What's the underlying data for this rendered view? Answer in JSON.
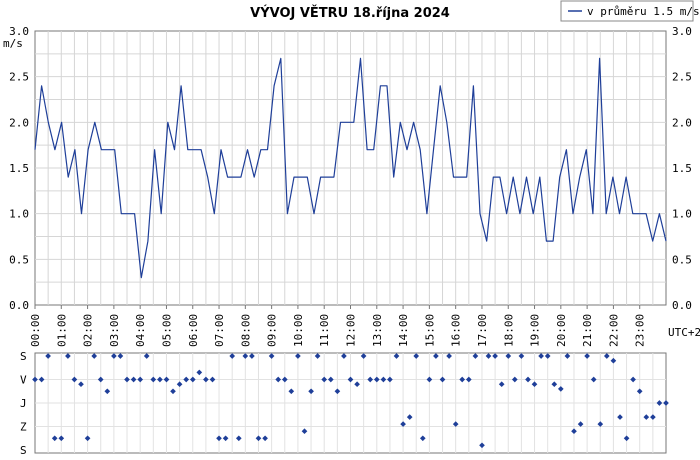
{
  "chart_data": [
    {
      "type": "line",
      "title": "VÝVOJ VĚTRU  18.října 2024",
      "ylabel": "m/s",
      "ylim": [
        0,
        3
      ],
      "y_ticks": [
        "0.0",
        "0.5",
        "1.0",
        "1.5",
        "2.0",
        "2.5",
        "3.0"
      ],
      "x_ticks": [
        "00:00",
        "01:00",
        "02:00",
        "03:00",
        "04:00",
        "05:00",
        "06:00",
        "07:00",
        "08:00",
        "09:00",
        "10:00",
        "11:00",
        "12:00",
        "13:00",
        "14:00",
        "15:00",
        "16:00",
        "17:00",
        "18:00",
        "19:00",
        "20:00",
        "21:00",
        "22:00",
        "23:00"
      ],
      "x_unit": "UTC+2",
      "grid": true,
      "legend_position": "top-right",
      "series": [
        {
          "name": "v průměru 1.5 m/s",
          "color": "#1f3f99",
          "values": [
            1.7,
            2.4,
            2.0,
            1.7,
            2.0,
            1.4,
            1.7,
            1.0,
            1.7,
            2.0,
            1.7,
            1.7,
            1.7,
            1.0,
            1.0,
            1.0,
            0.3,
            0.7,
            1.7,
            1.0,
            2.0,
            1.7,
            2.4,
            1.7,
            1.7,
            1.7,
            1.4,
            1.0,
            1.7,
            1.4,
            1.4,
            1.4,
            1.7,
            1.4,
            1.7,
            1.7,
            2.4,
            2.7,
            1.0,
            1.4,
            1.4,
            1.4,
            1.0,
            1.4,
            1.4,
            1.4,
            2.0,
            2.0,
            2.0,
            2.7,
            1.7,
            1.7,
            2.4,
            2.4,
            1.4,
            2.0,
            1.7,
            2.0,
            1.7,
            1.0,
            1.7,
            2.4,
            2.0,
            1.4,
            1.4,
            1.4,
            2.4,
            1.0,
            0.7,
            1.4,
            1.4,
            1.0,
            1.4,
            1.0,
            1.4,
            1.0,
            1.4,
            0.7,
            0.7,
            1.4,
            1.7,
            1.0,
            1.4,
            1.7,
            1.0,
            2.7,
            1.0,
            1.4,
            1.0,
            1.4,
            1.0,
            1.0,
            1.0,
            0.7,
            1.0,
            0.7
          ]
        }
      ]
    },
    {
      "type": "scatter",
      "y_categories": [
        "S",
        "V",
        "J",
        "Z",
        "S"
      ],
      "color": "#1f3f99",
      "directions": [
        1,
        1,
        0,
        3.5,
        3.5,
        0,
        1,
        1.2,
        3.5,
        0,
        1,
        1.5,
        0,
        0,
        1,
        1,
        1,
        0,
        1,
        1,
        1,
        1.5,
        1.2,
        1,
        1,
        0.7,
        1,
        1,
        3.5,
        3.5,
        0,
        3.5,
        0,
        0,
        3.5,
        3.5,
        0,
        1,
        1,
        1.5,
        0,
        3.2,
        1.5,
        0,
        1,
        1,
        1.5,
        0,
        1,
        1.2,
        0,
        1,
        1,
        1,
        1,
        0,
        2.9,
        2.6,
        0,
        3.5,
        1,
        0,
        1,
        0,
        2.9,
        1,
        1,
        0,
        3.8,
        0,
        0,
        1.2,
        0,
        1,
        0,
        1,
        1.2,
        0,
        0,
        1.2,
        1.4,
        0,
        3.2,
        2.9,
        0,
        1,
        2.9,
        0,
        0.2,
        2.6,
        3.5,
        1,
        1.5,
        2.6,
        2.6,
        2.0,
        2.0
      ]
    }
  ]
}
